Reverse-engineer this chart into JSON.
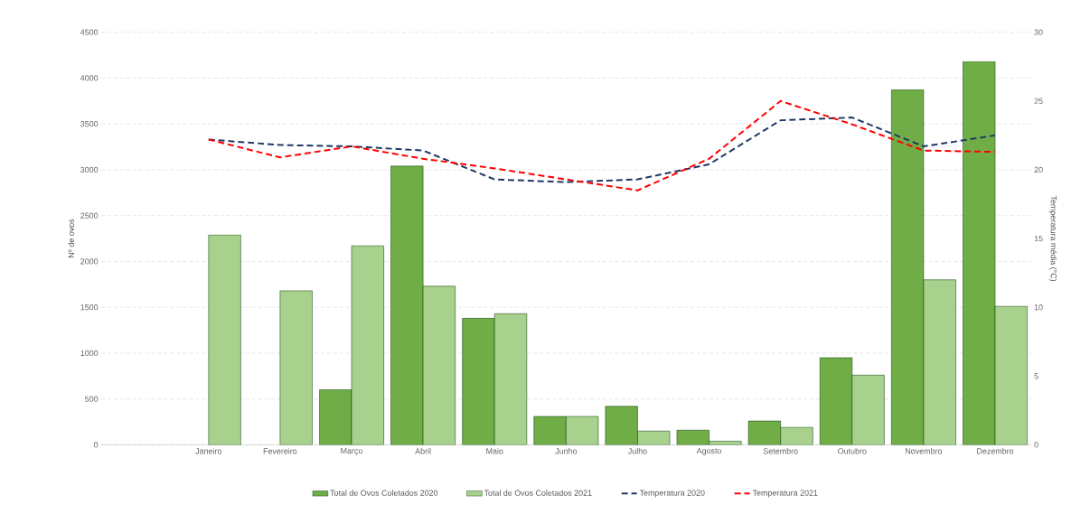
{
  "chart_data": {
    "type": "bar",
    "ylabel": "Nº de ovos",
    "y2label": "Temperatura média (°C)",
    "categories": [
      null,
      "Janeiro",
      "Fevereiro",
      "Março",
      "Abril",
      "Maio",
      "Junho",
      "Julho",
      "Agosto",
      "Setembro",
      "Outubro",
      "Novembro",
      "Dezembro"
    ],
    "series": [
      {
        "name": "Total de Ovos Coletados 2020",
        "color": "#70ad47",
        "values": [
          null,
          null,
          null,
          600,
          3040,
          1380,
          310,
          420,
          160,
          260,
          950,
          3870,
          4180
        ]
      },
      {
        "name": "Total de Ovos Coletados 2021",
        "color": "#a9d18e",
        "values": [
          null,
          2290,
          1680,
          2170,
          1730,
          1430,
          310,
          150,
          40,
          190,
          760,
          1800,
          1510
        ]
      },
      {
        "name": "Temperatura 2020",
        "type": "line",
        "axis": "y2",
        "color": "#203864",
        "line_style": "dashed",
        "values": [
          null,
          22.2,
          21.8,
          21.7,
          21.4,
          19.3,
          19.1,
          19.3,
          20.4,
          23.6,
          23.8,
          21.7,
          22.5
        ]
      },
      {
        "name": "Temperatura 2021",
        "type": "line",
        "axis": "y2",
        "color": "#ff0000",
        "line_style": "dashed",
        "values": [
          null,
          22.2,
          20.9,
          21.7,
          20.8,
          20.1,
          19.3,
          18.5,
          20.8,
          25.0,
          23.3,
          21.4,
          21.3
        ]
      }
    ],
    "ylim": [
      0,
      4500
    ],
    "yticks": [
      0,
      500,
      1000,
      1500,
      2000,
      2500,
      3000,
      3500,
      4000,
      4500
    ],
    "y2lim": [
      0,
      30
    ],
    "y2ticks": [
      0,
      5,
      10,
      15,
      20,
      25,
      30
    ],
    "grid": "y",
    "legend": "bottom",
    "marker": "none"
  }
}
